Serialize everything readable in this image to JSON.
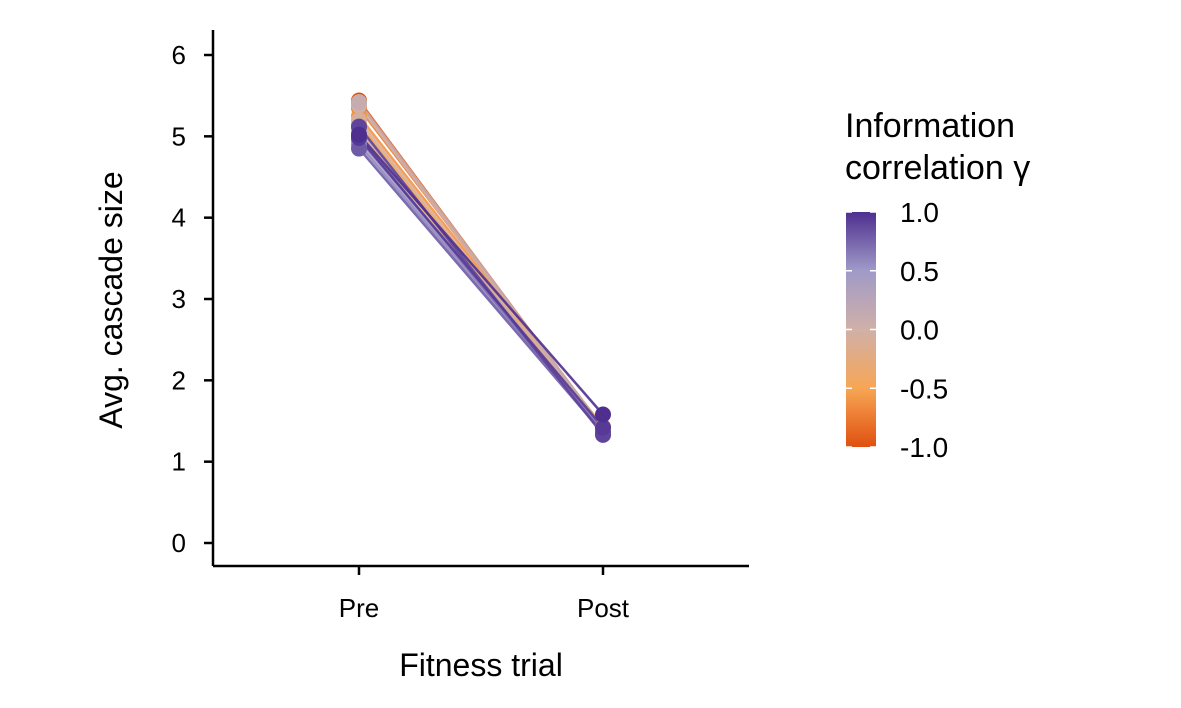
{
  "chart_data": {
    "type": "line",
    "title": "",
    "xlabel": "Fitness trial",
    "ylabel": "Avg. cascade size",
    "categories": [
      "Pre",
      "Post"
    ],
    "ylim": [
      0,
      6
    ],
    "yticks": [
      "0",
      "1",
      "2",
      "3",
      "4",
      "5",
      "6"
    ],
    "legend": {
      "title_line1": "Information",
      "title_line2": "correlation γ",
      "position": "right",
      "range": [
        -1,
        1
      ],
      "ticks": [
        "1.0",
        "0.5",
        "0.0",
        "-0.5",
        "-1.0"
      ],
      "tick_values": [
        1.0,
        0.5,
        0.0,
        -0.5,
        -1.0
      ],
      "colors": {
        "low": "#e0500f",
        "mid_low": "#f7a655",
        "mid": "#d0b0a8",
        "mid_high": "#a09ac8",
        "high": "#4e2f8f"
      }
    },
    "series": [
      {
        "gamma": -1.0,
        "values": [
          5.44,
          1.4
        ]
      },
      {
        "gamma": -0.9,
        "values": [
          5.42,
          1.41
        ]
      },
      {
        "gamma": -0.75,
        "values": [
          5.35,
          1.42
        ]
      },
      {
        "gamma": -0.6,
        "values": [
          5.25,
          1.43
        ]
      },
      {
        "gamma": -0.5,
        "values": [
          5.15,
          1.4
        ]
      },
      {
        "gamma": -0.3,
        "values": [
          5.05,
          1.42
        ]
      },
      {
        "gamma": -0.1,
        "values": [
          5.2,
          1.38
        ]
      },
      {
        "gamma": 0.0,
        "values": [
          5.38,
          1.39
        ]
      },
      {
        "gamma": 0.1,
        "values": [
          5.42,
          1.41
        ]
      },
      {
        "gamma": 0.3,
        "values": [
          5.1,
          1.37
        ]
      },
      {
        "gamma": 0.5,
        "values": [
          4.95,
          1.4
        ]
      },
      {
        "gamma": 0.6,
        "values": [
          4.9,
          1.38
        ]
      },
      {
        "gamma": 0.7,
        "values": [
          5.0,
          1.36
        ]
      },
      {
        "gamma": 0.8,
        "values": [
          4.85,
          1.35
        ]
      },
      {
        "gamma": 0.9,
        "values": [
          5.12,
          1.33
        ]
      },
      {
        "gamma": 0.95,
        "values": [
          4.98,
          1.42
        ]
      },
      {
        "gamma": 1.0,
        "values": [
          5.02,
          1.58
        ]
      }
    ]
  }
}
